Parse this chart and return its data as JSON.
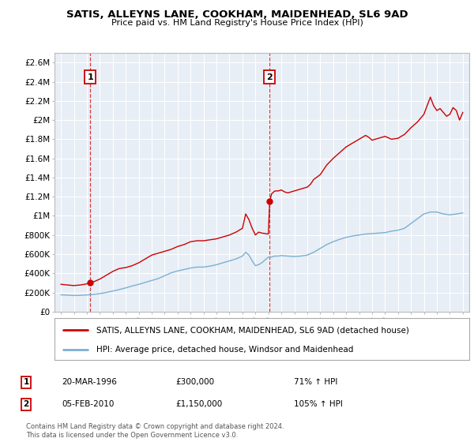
{
  "title": "SATIS, ALLEYNS LANE, COOKHAM, MAIDENHEAD, SL6 9AD",
  "subtitle": "Price paid vs. HM Land Registry's House Price Index (HPI)",
  "legend_label1": "SATIS, ALLEYNS LANE, COOKHAM, MAIDENHEAD, SL6 9AD (detached house)",
  "legend_label2": "HPI: Average price, detached house, Windsor and Maidenhead",
  "annotation1_label": "1",
  "annotation1_date": "20-MAR-1996",
  "annotation1_price": "£300,000",
  "annotation1_hpi": "71% ↑ HPI",
  "annotation1_year": 1996.25,
  "annotation1_value": 300000,
  "annotation2_label": "2",
  "annotation2_date": "05-FEB-2010",
  "annotation2_price": "£1,150,000",
  "annotation2_hpi": "105% ↑ HPI",
  "annotation2_year": 2010.1,
  "annotation2_value": 1150000,
  "xmin": 1993.5,
  "xmax": 2025.5,
  "ymin": 0,
  "ymax": 2700000,
  "yticks": [
    0,
    200000,
    400000,
    600000,
    800000,
    1000000,
    1200000,
    1400000,
    1600000,
    1800000,
    2000000,
    2200000,
    2400000,
    2600000
  ],
  "ytick_labels": [
    "£0",
    "£200K",
    "£400K",
    "£600K",
    "£800K",
    "£1M",
    "£1.2M",
    "£1.4M",
    "£1.6M",
    "£1.8M",
    "£2M",
    "£2.2M",
    "£2.4M",
    "£2.6M"
  ],
  "line_color": "#cc0000",
  "hpi_color": "#7ab0d4",
  "background_color": "#e8eef5",
  "grid_color": "#ffffff",
  "footnote": "Contains HM Land Registry data © Crown copyright and database right 2024.\nThis data is licensed under the Open Government Licence v3.0.",
  "house_price_data": [
    [
      1994.0,
      285000
    ],
    [
      1994.5,
      278000
    ],
    [
      1995.0,
      272000
    ],
    [
      1995.5,
      278000
    ],
    [
      1996.0,
      290000
    ],
    [
      1996.25,
      300000
    ],
    [
      1996.5,
      310000
    ],
    [
      1997.0,
      340000
    ],
    [
      1997.5,
      380000
    ],
    [
      1998.0,
      420000
    ],
    [
      1998.5,
      450000
    ],
    [
      1999.0,
      460000
    ],
    [
      1999.5,
      480000
    ],
    [
      2000.0,
      510000
    ],
    [
      2000.5,
      550000
    ],
    [
      2001.0,
      590000
    ],
    [
      2001.5,
      610000
    ],
    [
      2002.0,
      630000
    ],
    [
      2002.5,
      650000
    ],
    [
      2003.0,
      680000
    ],
    [
      2003.5,
      700000
    ],
    [
      2004.0,
      730000
    ],
    [
      2004.5,
      740000
    ],
    [
      2005.0,
      740000
    ],
    [
      2005.5,
      750000
    ],
    [
      2006.0,
      760000
    ],
    [
      2006.5,
      780000
    ],
    [
      2007.0,
      800000
    ],
    [
      2007.5,
      830000
    ],
    [
      2008.0,
      870000
    ],
    [
      2008.25,
      1020000
    ],
    [
      2008.5,
      960000
    ],
    [
      2008.75,
      870000
    ],
    [
      2009.0,
      800000
    ],
    [
      2009.25,
      830000
    ],
    [
      2009.5,
      820000
    ],
    [
      2010.0,
      810000
    ],
    [
      2010.1,
      1150000
    ],
    [
      2010.25,
      1230000
    ],
    [
      2010.5,
      1260000
    ],
    [
      2010.75,
      1260000
    ],
    [
      2011.0,
      1270000
    ],
    [
      2011.25,
      1250000
    ],
    [
      2011.5,
      1240000
    ],
    [
      2012.0,
      1260000
    ],
    [
      2012.5,
      1280000
    ],
    [
      2013.0,
      1300000
    ],
    [
      2013.25,
      1330000
    ],
    [
      2013.5,
      1380000
    ],
    [
      2014.0,
      1430000
    ],
    [
      2014.5,
      1530000
    ],
    [
      2015.0,
      1600000
    ],
    [
      2015.5,
      1660000
    ],
    [
      2016.0,
      1720000
    ],
    [
      2016.5,
      1760000
    ],
    [
      2017.0,
      1800000
    ],
    [
      2017.25,
      1820000
    ],
    [
      2017.5,
      1840000
    ],
    [
      2017.75,
      1820000
    ],
    [
      2018.0,
      1790000
    ],
    [
      2018.5,
      1810000
    ],
    [
      2019.0,
      1830000
    ],
    [
      2019.5,
      1800000
    ],
    [
      2020.0,
      1810000
    ],
    [
      2020.5,
      1850000
    ],
    [
      2021.0,
      1920000
    ],
    [
      2021.5,
      1980000
    ],
    [
      2022.0,
      2060000
    ],
    [
      2022.25,
      2150000
    ],
    [
      2022.5,
      2240000
    ],
    [
      2022.75,
      2150000
    ],
    [
      2023.0,
      2100000
    ],
    [
      2023.25,
      2120000
    ],
    [
      2023.5,
      2080000
    ],
    [
      2023.75,
      2040000
    ],
    [
      2024.0,
      2060000
    ],
    [
      2024.25,
      2130000
    ],
    [
      2024.5,
      2100000
    ],
    [
      2024.75,
      2000000
    ],
    [
      2025.0,
      2080000
    ]
  ],
  "hpi_data": [
    [
      1994.0,
      175000
    ],
    [
      1994.5,
      172000
    ],
    [
      1995.0,
      168000
    ],
    [
      1995.5,
      170000
    ],
    [
      1996.0,
      174000
    ],
    [
      1996.5,
      180000
    ],
    [
      1997.0,
      188000
    ],
    [
      1997.5,
      200000
    ],
    [
      1998.0,
      215000
    ],
    [
      1998.5,
      230000
    ],
    [
      1999.0,
      248000
    ],
    [
      1999.5,
      268000
    ],
    [
      2000.0,
      285000
    ],
    [
      2000.5,
      305000
    ],
    [
      2001.0,
      325000
    ],
    [
      2001.5,
      345000
    ],
    [
      2002.0,
      375000
    ],
    [
      2002.5,
      405000
    ],
    [
      2003.0,
      425000
    ],
    [
      2003.5,
      440000
    ],
    [
      2004.0,
      455000
    ],
    [
      2004.5,
      465000
    ],
    [
      2005.0,
      465000
    ],
    [
      2005.5,
      475000
    ],
    [
      2006.0,
      490000
    ],
    [
      2006.5,
      510000
    ],
    [
      2007.0,
      530000
    ],
    [
      2007.5,
      550000
    ],
    [
      2008.0,
      580000
    ],
    [
      2008.25,
      620000
    ],
    [
      2008.5,
      590000
    ],
    [
      2008.75,
      530000
    ],
    [
      2009.0,
      480000
    ],
    [
      2009.25,
      490000
    ],
    [
      2009.5,
      510000
    ],
    [
      2009.75,
      540000
    ],
    [
      2010.0,
      570000
    ],
    [
      2010.25,
      570000
    ],
    [
      2010.5,
      580000
    ],
    [
      2010.75,
      580000
    ],
    [
      2011.0,
      585000
    ],
    [
      2011.5,
      580000
    ],
    [
      2012.0,
      575000
    ],
    [
      2012.5,
      580000
    ],
    [
      2013.0,
      590000
    ],
    [
      2013.5,
      620000
    ],
    [
      2014.0,
      660000
    ],
    [
      2014.5,
      700000
    ],
    [
      2015.0,
      730000
    ],
    [
      2015.5,
      755000
    ],
    [
      2016.0,
      775000
    ],
    [
      2016.5,
      790000
    ],
    [
      2017.0,
      800000
    ],
    [
      2017.5,
      810000
    ],
    [
      2018.0,
      815000
    ],
    [
      2018.5,
      820000
    ],
    [
      2019.0,
      825000
    ],
    [
      2019.5,
      840000
    ],
    [
      2020.0,
      850000
    ],
    [
      2020.5,
      870000
    ],
    [
      2021.0,
      920000
    ],
    [
      2021.5,
      970000
    ],
    [
      2022.0,
      1020000
    ],
    [
      2022.5,
      1040000
    ],
    [
      2023.0,
      1040000
    ],
    [
      2023.5,
      1020000
    ],
    [
      2024.0,
      1010000
    ],
    [
      2024.5,
      1020000
    ],
    [
      2025.0,
      1030000
    ]
  ]
}
